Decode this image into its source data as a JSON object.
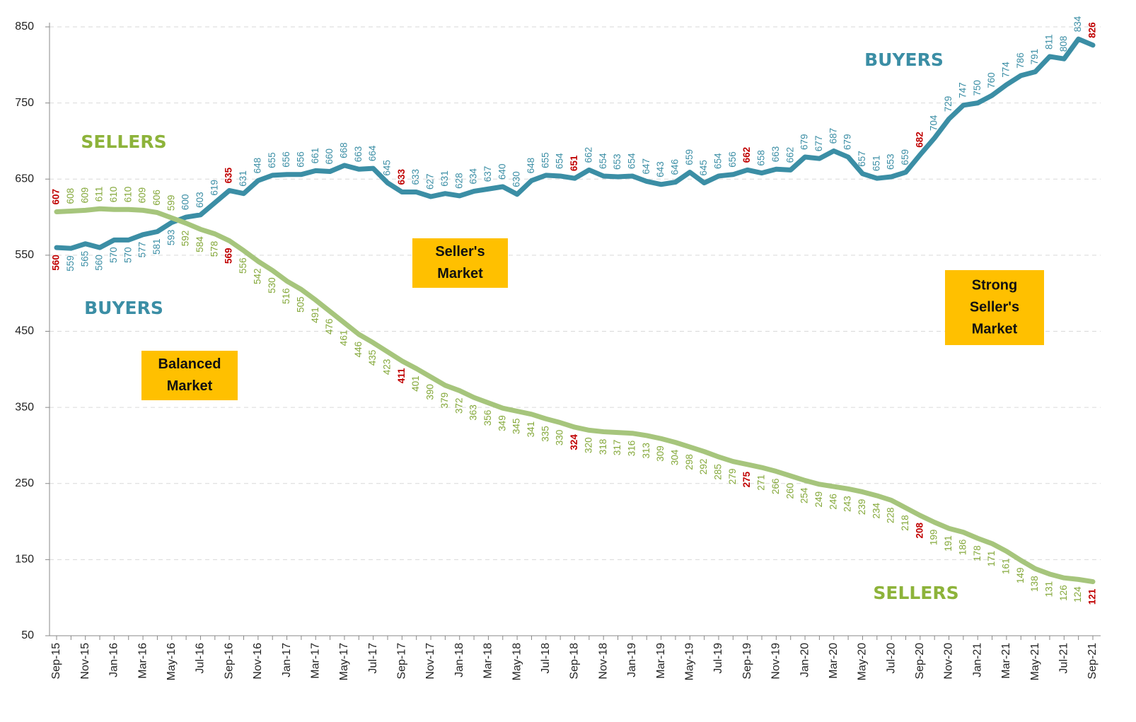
{
  "chart_data": {
    "type": "line",
    "categories": [
      "Sep-15",
      null,
      "Nov-15",
      null,
      "Jan-16",
      null,
      "Mar-16",
      null,
      "May-16",
      null,
      "Jul-16",
      null,
      "Sep-16",
      null,
      "Nov-16",
      null,
      "Jan-17",
      null,
      "Mar-17",
      null,
      "May-17",
      null,
      "Jul-17",
      null,
      "Sep-17",
      null,
      "Nov-17",
      null,
      "Jan-18",
      null,
      "Mar-18",
      null,
      "May-18",
      null,
      "Jul-18",
      null,
      "Sep-18",
      null,
      "Nov-18",
      null,
      "Jan-19",
      null,
      "Mar-19",
      null,
      "May-19",
      null,
      "Jul-19",
      null,
      "Sep-19",
      null,
      "Nov-19",
      null,
      "Jan-20",
      null,
      "Mar-20",
      null,
      "May-20",
      null,
      "Jul-20",
      null,
      "Sep-20",
      null,
      "Nov-20",
      null,
      "Jan-21",
      null,
      "Mar-21",
      null,
      "May-21",
      null,
      "Jul-21",
      null,
      "Sep-21"
    ],
    "series": [
      {
        "name": "BUYERS",
        "color": "#3b8ea5",
        "label_color": "#3b8ea5",
        "values": [
          560,
          559,
          565,
          560,
          570,
          570,
          577,
          581,
          593,
          600,
          603,
          619,
          635,
          631,
          648,
          655,
          656,
          656,
          661,
          660,
          668,
          663,
          664,
          645,
          633,
          633,
          627,
          631,
          628,
          634,
          637,
          640,
          630,
          648,
          655,
          654,
          651,
          662,
          654,
          653,
          654,
          647,
          643,
          646,
          659,
          645,
          654,
          656,
          662,
          658,
          663,
          662,
          679,
          677,
          687,
          679,
          657,
          651,
          653,
          659,
          682,
          704,
          729,
          747,
          750,
          760,
          774,
          786,
          791,
          811,
          808,
          834,
          826
        ]
      },
      {
        "name": "SELLERS",
        "color": "#a6c57c",
        "label_color": "#84a83a",
        "values": [
          607,
          608,
          609,
          611,
          610,
          610,
          609,
          606,
          599,
          592,
          584,
          578,
          569,
          556,
          542,
          530,
          516,
          505,
          491,
          476,
          461,
          446,
          435,
          423,
          411,
          401,
          390,
          379,
          372,
          363,
          356,
          349,
          345,
          341,
          335,
          330,
          324,
          320,
          318,
          317,
          316,
          313,
          309,
          304,
          298,
          292,
          285,
          279,
          275,
          271,
          266,
          260,
          254,
          249,
          246,
          243,
          239,
          234,
          228,
          218,
          208,
          199,
          191,
          186,
          178,
          171,
          161,
          149,
          138,
          131,
          126,
          124,
          121
        ]
      }
    ],
    "highlight_color": "#c00000",
    "ylim": [
      50,
      850
    ],
    "yticks": [
      50,
      150,
      250,
      350,
      450,
      550,
      650,
      750,
      850
    ],
    "grid": true,
    "annotations": [
      {
        "text": "SELLERS",
        "color": "#8db33a"
      },
      {
        "text": "BUYERS",
        "color": "#3b8ea5"
      },
      {
        "text": "BUYERS",
        "color": "#3b8ea5"
      },
      {
        "text": "SELLERS",
        "color": "#8db33a"
      }
    ],
    "boxes": [
      {
        "lines": [
          "Balanced",
          "Market"
        ],
        "color": "#ffc000"
      },
      {
        "lines": [
          "Seller's",
          "Market"
        ],
        "color": "#ffc000"
      },
      {
        "lines": [
          "Strong",
          "Seller's",
          "Market"
        ],
        "color": "#ffc000"
      }
    ]
  }
}
